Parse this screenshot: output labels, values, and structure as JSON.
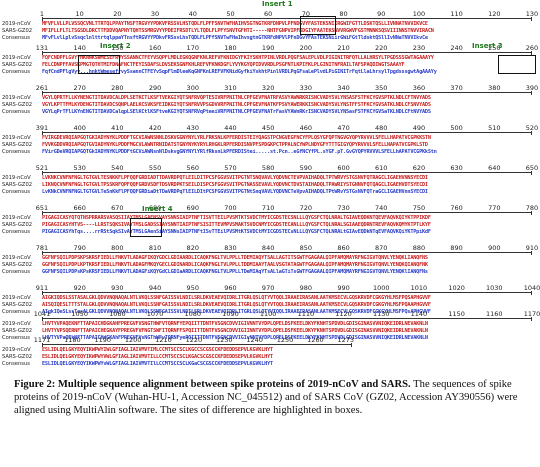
{
  "labels": {
    "seq1": "2019-nCoV",
    "seq2": "SARS-GZ02",
    "cons": "Consensus"
  },
  "inserts": [
    "Insert 1",
    "Insert 2",
    "Insert 3",
    "Insert 4"
  ],
  "blocks": [
    {
      "ticks": [
        "1",
        "10",
        "20",
        "30",
        "40",
        "50",
        "60",
        "70",
        "80",
        "90",
        "100",
        "110",
        "120",
        "130"
      ],
      "s1": "MFVFLVLLPLVSSQCVNLTTRTQLPPAYTNSFTRGVYYPDKVFRSSVLHSTQDLFLPFFSNVTWFHAIHVSGTNGTKRFDNPVLPFNDGVYFASTEKSNIIRGWIFGTTLDSKTQSLLIVNNATNVVIKVCE",
      "s2": "MFIFLLFLTLTSGSDLDRCTTFDDVQAPNYTQHTSSMRGVYYPDEIFRSDTLYLTQDLFLPFYSNVTGFHTI-----NHTFGNPVIPFKDGIYFAATEKSNVVRGWVFGSTMNNKSQSVIIINNSTNVVIRACN",
      "cons": "MFvFLvlLplvSsqclnlttrtqlppaYTnsftRGVYYPDkvFRSsvLhsTQDLFLPFfSNVTwFHaIhvsgtnGTKRFdNPVlPFnDGvYFAsTEKSNiirGWiFGtTldsktQSllIvNNaTNVVIkvCe"
    },
    {
      "ticks": [
        "131",
        "140",
        "150",
        "160",
        "170",
        "180",
        "190",
        "200",
        "210",
        "220",
        "230",
        "240",
        "250",
        "260"
      ],
      "s1": "FQFCNDPFLGVYYHKNNKSWMESEFRVYSSANNCTFEYVSQPFLMDLEGKQGNFKNLREFVFKNIDGYFKIYSKHTPINLVRDLPQGFSALEPLVDLPIGINITRFQTLLALHRSYLTPGDSSSGWTAGAAAYY",
      "s2": "FELCDNPFFAVSKPMGTQTHTMIFDNAFNCTFEYISDAFSLDVSEKSGNFKHLREFVFKNKDGFLYVYKGYQPIDVVRDLPSGFNTLKPIFKLPLGINITNFRAILTAFSPAQDIWGTSAAAYF",
      "cons": "FqfCndPFlgVyy...hnktWmesefrvySsannCTFEYvSqpFlmDleeKqGNFKnLREFVFKNidGyfkiYskhtPinlVRDLPqGFsaLePlvdLPiGINITrFqtLlaLhrsylTpgdsssgwtAgAAAYy"
    },
    {
      "ticks": [
        "261",
        "270",
        "280",
        "290",
        "300",
        "310",
        "320",
        "330",
        "340",
        "350",
        "360",
        "370",
        "380",
        "390"
      ],
      "s1": "VGYLQPRTFLLKYNENGTITDAVDCALDPLSETKCTLKSFTVEKGIYQTSNFRVQPTESIVRFPNITNLCPFGEVFNATRFASVYAWNRKRISNCVADYSVLYNSASFSTFKCYGVSPTKLNDLCFTNVYADS",
      "s2": "VGYLKPTTFMLKYDENGTITDAVDCSQNPLAELKCSVKSFEIDKGIYQTSNFRVVPSGDVVRFPNITNLCPFGEVFNATKFPSVYAWERKKISNCVADYSVLYNSTFFSTFKCYGVSATKLNDLCFSNVYADS",
      "cons": "VGYLqPrTFlLKYnENGTITDAVDCalqpLSElKCtlKSFtveKGIYQTSNFRVqPteeiVRFPNITNLCPFGEVFNATrFasVYAWnRKrISNCVADYSVLYNSasFSTFKCYGVSaTKLNDLCFtNVYADS"
    },
    {
      "ticks": [
        "391",
        "400",
        "410",
        "420",
        "430",
        "440",
        "450",
        "460",
        "470",
        "480",
        "490",
        "500",
        "510",
        "520"
      ],
      "s1": "FVIRGDEVRQIAPGQTGKIADYNYKLPDDFTGCVIAWNSNNLDSKVGGNYNYLYRLFRKSNLKPFERDISTEIYQAGSTPCNGVEGFNCYFPLQSYGFQPTNGVGYQPYRVVVLSFELLHAPATVCGPKKSTN",
      "s2": "FVVKGDDVRQIAPGQTGVIADYNYKLPDDFMGCVLAWNTRNIDATSTGNYNYKYRYLRHGKLRPFERDISNVPFSPDGKPCTPPALNCYWPLNDYGFYTTTGIGYQPYRVVVLSFELLNAPATVCGPKLSTD",
      "cons": "FVirGDeVRQIAPGQTGkIADYNYKLPDDFtGCViAWNsnNlDskvgGNYNYlYRlfRksnLkPFERDIStei.....st.Pcn..eGfNCYfPL.sYGF.pT.GvGYQPYRVVVLSFELLhAPATVCGPKkStn"
    },
    {
      "ticks": [
        "521",
        "530",
        "540",
        "550",
        "560",
        "570",
        "580",
        "590",
        "600",
        "610",
        "620",
        "630",
        "640",
        "650"
      ],
      "s1": "LVKNKCVNFNFNGLTGTGVLTESNKKFLPFQQFGRDIADTTDAVRDPQTLEILDITPCSFGGVSVITPGTNTSNQVAVLYQDVNCTEVPVAIHADQLTPTWRVYSTGSNVFQTRAGCLIGAEHVNNSYECDI",
      "s2": "LIKNQCVNFNFNGLTGTGVLTPSSKRFQPFQQFGRDVSDFTDSVRDPKTSEILDISPCSFGGVSVITPGTNASSEVAVLYQDVNCTDVSTAIHADQLTPAWRIYSTGNNVFQTQAGCLIGAEHVDTSYECDI",
      "cons": "LvKNkCVNFNFNGLTGTGVLTeSnKkFlPFQQFGRDiaDtTDaVRDPqTlEILDItPCSFGGVSVITPGTNtSnqVAVLYQDVNCTeVpvAIHADQLTPtWRvYSTGsNVFQTraGCLIGAEHVnnSYECDI"
    },
    {
      "ticks": [
        "651",
        "660",
        "670",
        "680",
        "690",
        "700",
        "710",
        "720",
        "730",
        "740",
        "750",
        "760",
        "770",
        "780"
      ],
      "s1": "PIGAGICASYQTQTNSPRRARSVASQSIIAYTMSLGAENSVAYSNNSIAIPTNFTISVTTEILPVSMTKTSVDCTMYICGDSTECSNLLLQYGSFCTQLNRALTGIAVEQDKNTQEVFAQVKQIYKTPPIKDF",
      "s2": "PIGAGICASYHTVS----LLRSTSQKSIVAYTMSLGADSSIAYSNNTIAIPTNFSISITTEVMPVSMAKTSVDCNMYICGDSTECANLLLQYGSFCTQLNRALSGIAAEQDRNTREVFAQVKQMYKTPTLKYF",
      "cons": "PIGAGICASYhTqs....rrRStSqkSIvAYTMSLGAenSiAYSNNsIAIPTNFtISvTTEilPVSMtKTSVDCtMYICGDSTECsNLLLQYGSFCTQLNRALtGIAvEQDkNTqEVFAQVKQiYKTPpiKdF"
    },
    {
      "ticks": [
        "781",
        "790",
        "800",
        "810",
        "820",
        "830",
        "840",
        "850",
        "860",
        "870",
        "880",
        "890",
        "900",
        "910"
      ],
      "s1": "GGFNFSQILPDPSKPSKRSFIEDLLFNKVTLADAGFIKQYGDCLGDIAARDLICAQKFNGLTVLPPLLTDEMIAQYTSALLAGTITSGWTFGAGAALQIPFAMQMAYRFNGIGVTQNVLYENQKLIANQFNS",
      "s2": "GGFNFSQILPDPLKPTKRSFIEDLLFNKVTLADAGFMKQYGECLGDINARDLICAQKFNGLTVLPPLLTDDMIAAYTAALVSGTATAGWTFGAGAALQIPFAMQMAYRFNGIGVTQNVLYENQKQIANQFNK",
      "cons": "GGFNFSQILPDPsKPsKRSFIEDLLFNKVTLADAGFiKQYGdCLGDIaARDLICAQKFNGLTVLPPLLTDeMIAqYTsALlaGTiTsGWTFGAGAALQIPFAMQMAYRFNGIGVTQNVLYENQKlIANQFNs"
    },
    {
      "ticks": [
        "911",
        "920",
        "930",
        "940",
        "950",
        "960",
        "970",
        "980",
        "990",
        "1000",
        "1010",
        "1020",
        "1030",
        "1040"
      ],
      "s1": "AIGKIQDSLSSTASALGKLQDVVNQNAQALNTLVKQLSSNFGAISSVLNDILSRLDKVEAEVQIDRLITGRLQSLQTYVTQQLIRAAEIRASANLAATKMSECVLGQSKRVDFCGKGYHLMSFPQSAPHGVVF",
      "s2": "AISQIQESLTTTSTALGKLQDVVNQNAQALNTLVKQLSSNFGAISSVLNDILSRLDKVEAEVQIDRLITGRLQSLQTYVTQQLIRAAEIRASANLAATKMSECVLGQSKRVDFCGKGYHLMSFPQAAPHGVVF",
      "cons": "AIgkIQeSLssTasALGKLQDVVNQNAQALNTLVKQLSSNFGAISSVLNDILSRLDKVEAEVQIDRLITGRLQSLQTYVTQQLIRAAEIRASANLAATKMSECVLGQSKRVDFCGKGYHLMSFPQsAPHGVVF"
    },
    {
      "ticks": [
        "1041",
        "1050",
        "1060",
        "1070",
        "1080",
        "1090",
        "1100",
        "1110",
        "1120",
        "1130",
        "1140",
        "1150",
        "1160",
        "1170"
      ],
      "s1": "LHVTYVPAQEKNFTTAPAICHDGKAHFPREGVFVSNGTHWFVTQRNFYEPQIITTDNTFVSGNCDVVIGIVNNTVYDPLQPELDSFKEELDKYFKNHTSPDVDLGDISGINASVVNIQKEIDRLNEVAKNLN",
      "s2": "LHVTYVPSQERNFTTAPAICHEGKAYFPREGVFVFNGTSWFITQRNFFSPQIITTDNTFVSGNCDVVIGIINNTVYDPLQPELDSFKEELDKYFKNHTSPDVDLGDISGINASVVNIQKEIDRLNEVAKNLN",
      "cons": "LHVTYVPaQEkNFTTAPAICHdGKAhFPREGVFVsNGThWFvTQRNFyePQIITTDNTFVSGNCDVVIGIvNNTVYDPLQPELDSFKEELDKYFKNHTSPDVDLGDISGINASVVNIQKEIDRLNEVAKNLN"
    },
    {
      "ticks": [
        "1171",
        "1180",
        "1190",
        "1200",
        "1210",
        "1220",
        "1230",
        "1240",
        "1250",
        "1260",
        "1273"
      ],
      "s1": "ESLIDLQELGKYEQYIKWPWYIWLGFIAGLIAIVMVTIMLCCMTSCCSCLKGCCSCGSCCKFDEDDSEPVLKGVKLHYT",
      "s2": "ESLIDLQELGKYEQYIKWPWYVWLGFIAGLIAIVMVTILLCCMTSCCSCLKGACSCGSCCKFDEDDSEPVLKGVKLHYT",
      "cons": "ESLIDLQELGKYEQYIKWPWYvWLGFIAGLIAIVMVTIlLCCMTSCCSCLKGaCSCGSCCKFDEDDSEPVLKGVKLHYT"
    }
  ],
  "caption": {
    "figure_label": "Figure 2: Multiple sequence alignment between spike proteins of 2019-nCoV and SARS.",
    "body": "The sequences of spike proteins of 2019-nCoV (Wuhan-HU-1, Accession NC_045512) and of SARS CoV (GZ02, Accession AY390556) were aligned using MultiAlin software. The sites of difference are highlighted in boxes."
  }
}
